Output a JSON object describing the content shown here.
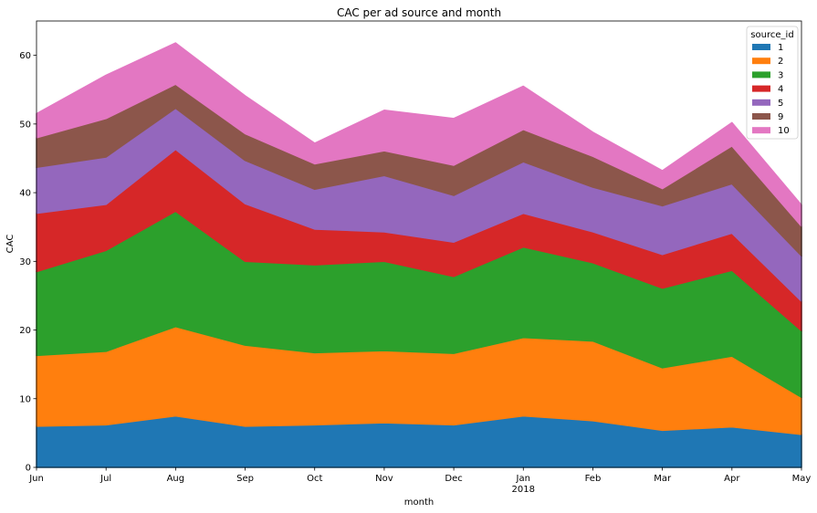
{
  "chart_data": {
    "type": "area",
    "stacked": true,
    "title": "CAC per ad source and month",
    "xlabel": "month",
    "ylabel": "CAC",
    "x": [
      "Jun",
      "Jul",
      "Aug",
      "Sep",
      "Oct",
      "Nov",
      "Dec",
      "Jan",
      "Feb",
      "Mar",
      "Apr",
      "May"
    ],
    "x_sublabels": [
      "",
      "",
      "",
      "",
      "",
      "",
      "",
      "2018",
      "",
      "",
      "",
      ""
    ],
    "ylim": [
      0,
      65
    ],
    "yticks": [
      0,
      10,
      20,
      30,
      40,
      50,
      60
    ],
    "grid": false,
    "legend": {
      "title": "source_id",
      "placement": "top-right"
    },
    "series": [
      {
        "name": "1",
        "color": "#1f77b4",
        "values": [
          6.0,
          6.2,
          7.5,
          6.0,
          6.2,
          6.5,
          6.2,
          7.5,
          6.8,
          5.4,
          5.9,
          4.8
        ]
      },
      {
        "name": "2",
        "color": "#ff7f0e",
        "values": [
          10.3,
          10.7,
          13.0,
          11.8,
          10.5,
          10.5,
          10.4,
          11.4,
          11.6,
          9.1,
          10.3,
          5.4
        ]
      },
      {
        "name": "3",
        "color": "#2ca02c",
        "values": [
          12.2,
          14.7,
          16.8,
          12.2,
          12.8,
          13.0,
          11.2,
          13.2,
          11.4,
          11.6,
          12.5,
          9.7
        ]
      },
      {
        "name": "4",
        "color": "#d62728",
        "values": [
          8.5,
          6.7,
          9.0,
          8.4,
          5.2,
          4.3,
          5.0,
          4.9,
          4.5,
          4.9,
          5.4,
          4.3
        ]
      },
      {
        "name": "5",
        "color": "#9467bd",
        "values": [
          6.7,
          6.9,
          6.0,
          6.3,
          5.8,
          8.2,
          6.8,
          7.5,
          6.5,
          7.1,
          7.2,
          6.6
        ]
      },
      {
        "name": "9",
        "color": "#8c564b",
        "values": [
          4.3,
          5.6,
          3.5,
          3.9,
          3.7,
          3.6,
          4.4,
          4.7,
          4.5,
          2.5,
          5.5,
          4.3
        ]
      },
      {
        "name": "10",
        "color": "#e377c2",
        "values": [
          3.5,
          6.3,
          6.0,
          5.5,
          3.0,
          5.9,
          6.8,
          6.3,
          3.5,
          2.6,
          3.4,
          3.1
        ]
      }
    ]
  }
}
